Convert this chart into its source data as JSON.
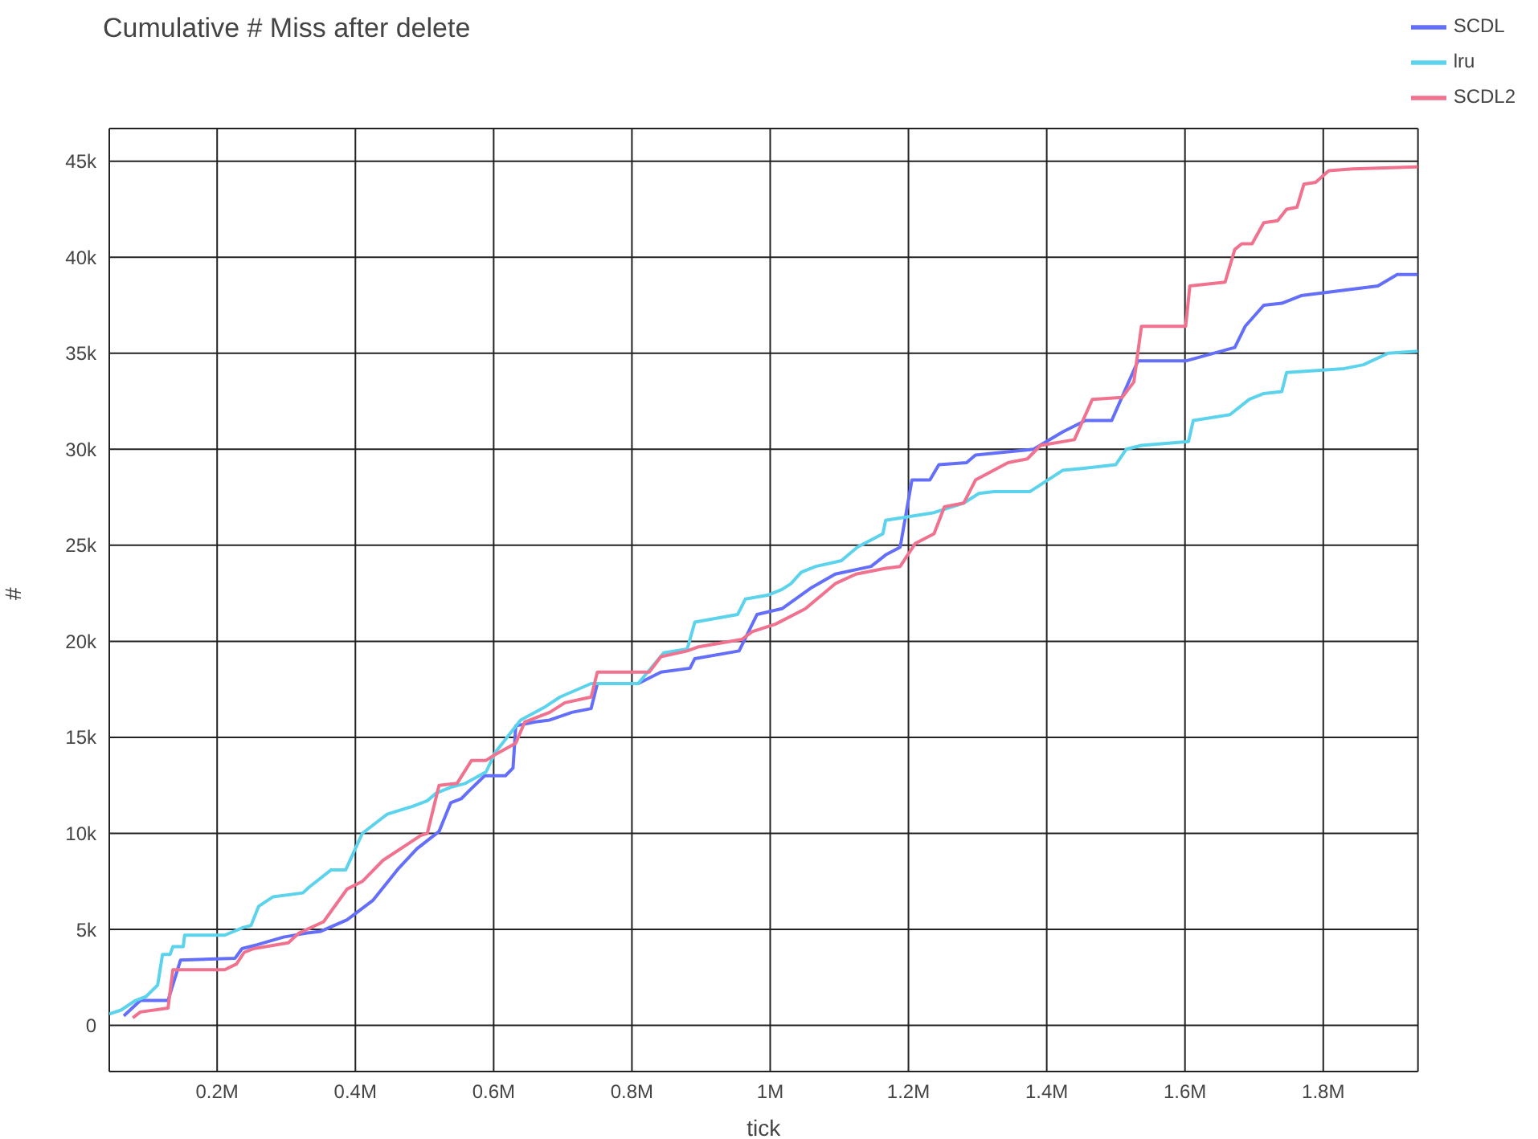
{
  "chart_data": {
    "type": "line",
    "title": "Cumulative # Miss after delete",
    "xlabel": "tick",
    "ylabel": "#",
    "legend": "top right",
    "grid": true,
    "marker": "none",
    "line_style": "solid",
    "xlim": [
      44000,
      1937000
    ],
    "ylim": [
      -2400,
      46700
    ],
    "xticks": [
      {
        "value": 200000,
        "label": "0.2M"
      },
      {
        "value": 400000,
        "label": "0.4M"
      },
      {
        "value": 600000,
        "label": "0.6M"
      },
      {
        "value": 800000,
        "label": "0.8M"
      },
      {
        "value": 1000000,
        "label": "1M"
      },
      {
        "value": 1200000,
        "label": "1.2M"
      },
      {
        "value": 1400000,
        "label": "1.4M"
      },
      {
        "value": 1600000,
        "label": "1.6M"
      },
      {
        "value": 1800000,
        "label": "1.8M"
      }
    ],
    "yticks": [
      0,
      {
        "value": 5000,
        "label": "5k"
      },
      {
        "value": 10000,
        "label": "10k"
      },
      {
        "value": 15000,
        "label": "15k"
      },
      {
        "value": 20000,
        "label": "20k"
      },
      {
        "value": 25000,
        "label": "25k"
      },
      {
        "value": 30000,
        "label": "30k"
      },
      {
        "value": 35000,
        "label": "35k"
      },
      {
        "value": 40000,
        "label": "40k"
      },
      {
        "value": 45000,
        "label": "45k"
      }
    ],
    "series": [
      {
        "name": "SCDL",
        "color": "#636efa",
        "x": [
          65000,
          89000,
          129000,
          147000,
          226000,
          236000,
          258000,
          296000,
          328000,
          350000,
          388000,
          425000,
          463000,
          489000,
          521000,
          538000,
          553000,
          564000,
          587000,
          617000,
          628000,
          632000,
          660000,
          681000,
          713000,
          741000,
          750000,
          809000,
          842000,
          884000,
          891000,
          955000,
          981000,
          1017000,
          1060000,
          1094000,
          1146000,
          1167000,
          1188000,
          1205000,
          1231000,
          1244000,
          1284000,
          1297000,
          1381000,
          1423000,
          1456000,
          1494000,
          1532000,
          1601000,
          1672000,
          1687000,
          1714000,
          1740000,
          1768000,
          1879000,
          1907000,
          1937000
        ],
        "values": [
          500,
          1300,
          1300,
          3400,
          3500,
          4000,
          4200,
          4600,
          4800,
          4900,
          5500,
          6500,
          8200,
          9200,
          10100,
          11600,
          11800,
          12200,
          13000,
          13000,
          13400,
          15600,
          15800,
          15900,
          16300,
          16500,
          17800,
          17800,
          18400,
          18600,
          19100,
          19500,
          21400,
          21700,
          22800,
          23500,
          23900,
          24500,
          24900,
          28400,
          28400,
          29200,
          29300,
          29700,
          30000,
          30900,
          31500,
          31500,
          34600,
          34600,
          35300,
          36400,
          37500,
          37600,
          38000,
          38500,
          39100,
          39100
        ]
      },
      {
        "name": "lru",
        "color": "#5bd3ec",
        "x": [
          44000,
          61000,
          82000,
          97000,
          114000,
          121000,
          132000,
          136000,
          151000,
          153000,
          211000,
          238000,
          249000,
          260000,
          281000,
          324000,
          333000,
          365000,
          386000,
          410000,
          446000,
          482000,
          504000,
          517000,
          538000,
          559000,
          589000,
          602000,
          639000,
          675000,
          696000,
          741000,
          809000,
          846000,
          880000,
          891000,
          953000,
          964000,
          996000,
          1017000,
          1030000,
          1045000,
          1066000,
          1103000,
          1126000,
          1163000,
          1167000,
          1237000,
          1280000,
          1302000,
          1324000,
          1376000,
          1423000,
          1451000,
          1500000,
          1515000,
          1537000,
          1605000,
          1612000,
          1665000,
          1693000,
          1714000,
          1740000,
          1747000,
          1830000,
          1858000,
          1894000,
          1937000
        ],
        "values": [
          600,
          800,
          1300,
          1500,
          2100,
          3700,
          3700,
          4100,
          4100,
          4700,
          4700,
          5100,
          5200,
          6200,
          6700,
          6900,
          7200,
          8100,
          8100,
          10000,
          11000,
          11400,
          11700,
          12100,
          12400,
          12600,
          13200,
          14200,
          15900,
          16600,
          17100,
          17800,
          17800,
          19400,
          19600,
          21000,
          21400,
          22200,
          22400,
          22700,
          23000,
          23600,
          23900,
          24200,
          24900,
          25600,
          26300,
          26700,
          27200,
          27700,
          27800,
          27800,
          28900,
          29000,
          29200,
          30000,
          30200,
          30400,
          31500,
          31800,
          32600,
          32900,
          33000,
          34000,
          34200,
          34400,
          35000,
          35100
        ]
      },
      {
        "name": "SCDL2",
        "color": "#f0728f",
        "x": [
          78000,
          89000,
          129000,
          136000,
          211000,
          228000,
          239000,
          253000,
          303000,
          318000,
          354000,
          382000,
          388000,
          410000,
          440000,
          495000,
          504000,
          521000,
          547000,
          568000,
          589000,
          602000,
          632000,
          645000,
          681000,
          703000,
          741000,
          750000,
          825000,
          842000,
          880000,
          895000,
          959000,
          974000,
          1008000,
          1051000,
          1094000,
          1124000,
          1167000,
          1188000,
          1210000,
          1237000,
          1252000,
          1280000,
          1297000,
          1344000,
          1372000,
          1391000,
          1440000,
          1466000,
          1509000,
          1526000,
          1537000,
          1601000,
          1607000,
          1658000,
          1672000,
          1682000,
          1697000,
          1714000,
          1734000,
          1747000,
          1762000,
          1772000,
          1789000,
          1808000,
          1843000,
          1937000
        ],
        "values": [
          400,
          700,
          900,
          2900,
          2900,
          3200,
          3800,
          4000,
          4300,
          4800,
          5400,
          6800,
          7100,
          7500,
          8600,
          9900,
          10000,
          12500,
          12600,
          13800,
          13800,
          14100,
          14700,
          15800,
          16300,
          16800,
          17100,
          18400,
          18400,
          19200,
          19500,
          19700,
          20100,
          20500,
          20900,
          21700,
          23000,
          23500,
          23800,
          23900,
          25100,
          25600,
          27000,
          27200,
          28400,
          29300,
          29500,
          30200,
          30500,
          32600,
          32700,
          33500,
          36400,
          36400,
          38500,
          38700,
          40400,
          40700,
          40700,
          41800,
          41900,
          42500,
          42600,
          43800,
          43900,
          44500,
          44600,
          44700
        ]
      }
    ]
  }
}
